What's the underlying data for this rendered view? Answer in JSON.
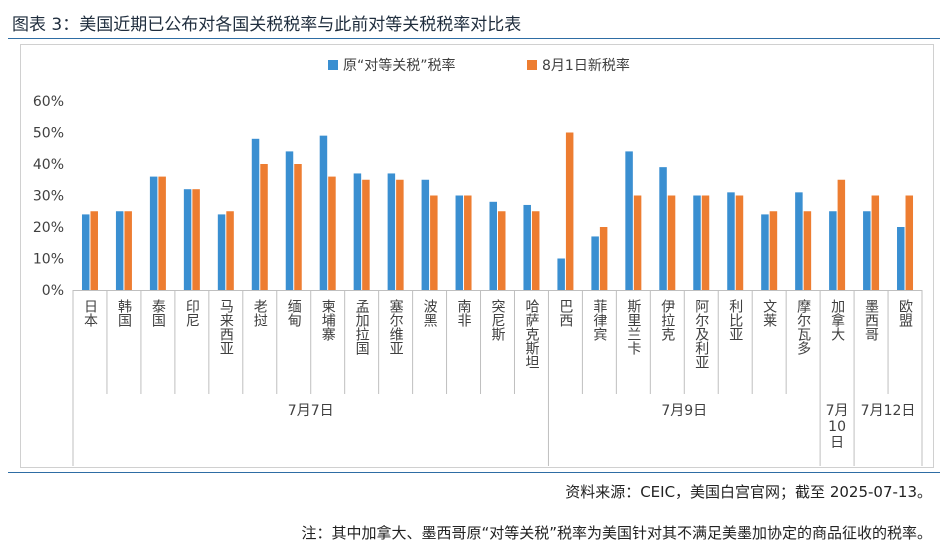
{
  "figure_title": "图表 3：美国近期已公布对各国关税税率与此前对等关税税率对比表",
  "source_text": "资料来源：CEIC，美国白宫官网；截至 2025-07-13。",
  "note_text": "注：其中加拿大、墨西哥原“对等关税”税率为美国针对其不满足美墨加协定的商品征收的税率。",
  "colors": {
    "series_original": "#3a8fd1",
    "series_new": "#ed7d31",
    "rule": "#2e6da4",
    "axis": "#bfbfbf"
  },
  "chart_data": {
    "type": "bar",
    "title": "",
    "xlabel": "",
    "ylabel": "",
    "ylim": [
      0,
      60
    ],
    "yticks": [
      0,
      10,
      20,
      30,
      40,
      50,
      60
    ],
    "ytick_labels": [
      "0%",
      "10%",
      "20%",
      "30%",
      "40%",
      "50%",
      "60%"
    ],
    "legend_position": "top-center",
    "categories": [
      "日本",
      "韩国",
      "泰国",
      "印尼",
      "马来西亚",
      "老挝",
      "缅甸",
      "柬埔寨",
      "孟加拉国",
      "塞尔维亚",
      "波黑",
      "南非",
      "突尼斯",
      "哈萨克斯坦",
      "巴西",
      "菲律宾",
      "斯里兰卡",
      "伊拉克",
      "阿尔及利亚",
      "利比亚",
      "文莱",
      "摩尔瓦多",
      "加拿大",
      "墨西哥",
      "欧盟"
    ],
    "series": [
      {
        "name": "原“对等关税”税率",
        "values": [
          24,
          25,
          36,
          32,
          24,
          48,
          44,
          49,
          37,
          37,
          35,
          30,
          28,
          27,
          10,
          17,
          44,
          39,
          30,
          31,
          24,
          31,
          25,
          25,
          20
        ]
      },
      {
        "name": "8月1日新税率",
        "values": [
          25,
          25,
          36,
          32,
          25,
          40,
          40,
          36,
          35,
          35,
          30,
          30,
          25,
          25,
          50,
          20,
          30,
          30,
          30,
          30,
          25,
          25,
          35,
          30,
          30
        ]
      }
    ],
    "groups": [
      {
        "label": "7月7日",
        "start": 0,
        "end": 13
      },
      {
        "label": "7月9日",
        "start": 14,
        "end": 21
      },
      {
        "label": "7月10日",
        "start": 22,
        "end": 22
      },
      {
        "label": "7月12日",
        "start": 23,
        "end": 24
      }
    ]
  }
}
